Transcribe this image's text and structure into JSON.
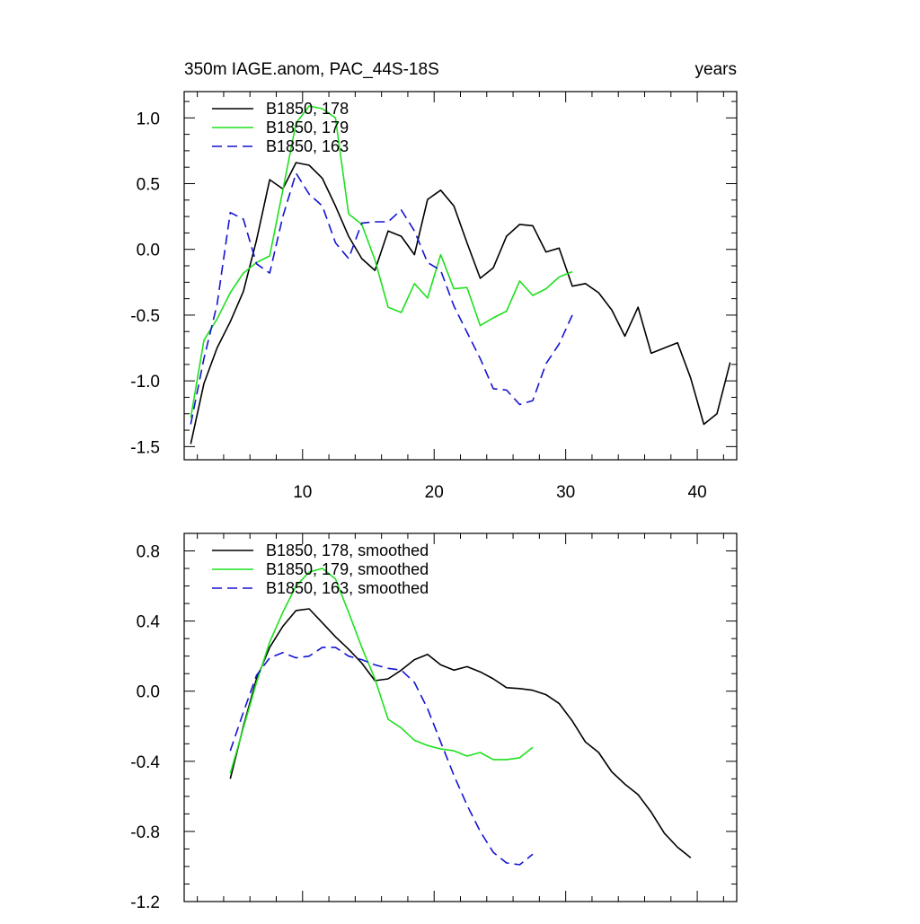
{
  "chart_data": [
    {
      "type": "line",
      "title": "350m IAGE.anom, PAC_44S-18S",
      "title_right": "years",
      "xlim": [
        1,
        43
      ],
      "ylim": [
        -1.6,
        1.2
      ],
      "xticks": [
        10,
        20,
        30,
        40
      ],
      "xtick_labels": [
        "10",
        "20",
        "30",
        "40"
      ],
      "yticks": [
        -1.5,
        -1.0,
        -0.5,
        0.0,
        0.5,
        1.0
      ],
      "ytick_labels": [
        "-1.5",
        "-1.0",
        "-0.5",
        "0.0",
        "0.5",
        "1.0"
      ],
      "grid": false,
      "legend_position": "top-left",
      "series": [
        {
          "name": "B1850, 178",
          "color": "#000000",
          "dash": "solid",
          "x": [
            1.5,
            2.5,
            3.5,
            4.5,
            5.5,
            6.5,
            7.5,
            8.5,
            9.5,
            10.5,
            11.5,
            12.5,
            13.5,
            14.5,
            15.5,
            16.5,
            17.5,
            18.5,
            19.5,
            20.5,
            21.5,
            22.5,
            23.5,
            24.5,
            25.5,
            26.5,
            27.5,
            28.5,
            29.5,
            30.5,
            31.5,
            32.5,
            33.5,
            34.5,
            35.5,
            36.5,
            37.5,
            38.5,
            39.5,
            40.5,
            41.5,
            42.5
          ],
          "y": [
            -1.48,
            -1.02,
            -0.75,
            -0.55,
            -0.32,
            0.07,
            0.53,
            0.46,
            0.66,
            0.64,
            0.54,
            0.33,
            0.1,
            -0.07,
            -0.16,
            0.14,
            0.1,
            -0.04,
            0.38,
            0.45,
            0.33,
            0.05,
            -0.22,
            -0.14,
            0.1,
            0.19,
            0.18,
            -0.02,
            0.01,
            -0.28,
            -0.26,
            -0.33,
            -0.46,
            -0.66,
            -0.44,
            -0.79,
            -0.75,
            -0.71,
            -0.98,
            -1.33,
            -1.25,
            -0.86
          ]
        },
        {
          "name": "B1850, 179",
          "color": "#1fe01f",
          "dash": "solid",
          "x": [
            1.5,
            2.5,
            3.5,
            4.5,
            5.5,
            6.5,
            7.5,
            8.5,
            9.5,
            10.5,
            11.5,
            12.5,
            13.5,
            14.5,
            15.5,
            16.5,
            17.5,
            18.5,
            19.5,
            20.5,
            21.5,
            22.5,
            23.5,
            24.5,
            25.5,
            26.5,
            27.5,
            28.5,
            29.5,
            30.5
          ],
          "y": [
            -1.28,
            -0.69,
            -0.53,
            -0.33,
            -0.18,
            -0.1,
            -0.05,
            0.45,
            0.96,
            1.09,
            1.07,
            1.0,
            0.27,
            0.19,
            -0.08,
            -0.44,
            -0.48,
            -0.26,
            -0.37,
            -0.04,
            -0.3,
            -0.29,
            -0.58,
            -0.52,
            -0.47,
            -0.24,
            -0.35,
            -0.3,
            -0.21,
            -0.17
          ]
        },
        {
          "name": "B1850, 163",
          "color": "#1414d2",
          "dash": "dashed",
          "x": [
            1.5,
            2.5,
            3.5,
            4.5,
            5.5,
            6.5,
            7.5,
            8.5,
            9.5,
            10.5,
            11.5,
            12.5,
            13.5,
            14.5,
            15.5,
            16.5,
            17.5,
            18.5,
            19.5,
            20.5,
            21.5,
            22.5,
            23.5,
            24.5,
            25.5,
            26.5,
            27.5,
            28.5,
            29.5,
            30.5
          ],
          "y": [
            -1.33,
            -0.83,
            -0.42,
            0.28,
            0.23,
            -0.11,
            -0.18,
            0.25,
            0.58,
            0.42,
            0.33,
            0.05,
            -0.07,
            0.2,
            0.21,
            0.21,
            0.3,
            0.14,
            -0.1,
            -0.16,
            -0.43,
            -0.63,
            -0.83,
            -1.06,
            -1.07,
            -1.18,
            -1.15,
            -0.87,
            -0.72,
            -0.5
          ]
        }
      ]
    },
    {
      "type": "line",
      "title": "",
      "xlim": [
        1,
        43
      ],
      "ylim": [
        -1.2,
        0.9
      ],
      "xticks": [
        10,
        20,
        30,
        40
      ],
      "xtick_labels": [],
      "yticks": [
        -1.2,
        -0.8,
        -0.4,
        0.0,
        0.4,
        0.8
      ],
      "ytick_labels": [
        "-1.2",
        "-0.8",
        "-0.4",
        "0.0",
        "0.4",
        "0.8"
      ],
      "grid": false,
      "legend_position": "top-left",
      "series": [
        {
          "name": "B1850, 178, smoothed",
          "color": "#000000",
          "dash": "solid",
          "x": [
            4.5,
            5.5,
            6.5,
            7.5,
            8.5,
            9.5,
            10.5,
            11.5,
            12.5,
            13.5,
            14.5,
            15.5,
            16.5,
            17.5,
            18.5,
            19.5,
            20.5,
            21.5,
            22.5,
            23.5,
            24.5,
            25.5,
            26.5,
            27.5,
            28.5,
            29.5,
            30.5,
            31.5,
            32.5,
            33.5,
            34.5,
            35.5,
            36.5,
            37.5,
            38.5,
            39.5
          ],
          "y": [
            -0.5,
            -0.2,
            0.07,
            0.25,
            0.37,
            0.46,
            0.47,
            0.39,
            0.31,
            0.24,
            0.16,
            0.06,
            0.07,
            0.12,
            0.18,
            0.21,
            0.15,
            0.12,
            0.14,
            0.11,
            0.07,
            0.02,
            0.015,
            0.005,
            -0.02,
            -0.07,
            -0.17,
            -0.29,
            -0.35,
            -0.46,
            -0.53,
            -0.59,
            -0.69,
            -0.81,
            -0.89,
            -0.95
          ]
        },
        {
          "name": "B1850, 179, smoothed",
          "color": "#1fe01f",
          "dash": "solid",
          "x": [
            4.5,
            5.5,
            6.5,
            7.5,
            8.5,
            9.5,
            10.5,
            11.5,
            12.5,
            13.5,
            14.5,
            15.5,
            16.5,
            17.5,
            18.5,
            19.5,
            20.5,
            21.5,
            22.5,
            23.5,
            24.5,
            25.5,
            26.5,
            27.5
          ],
          "y": [
            -0.47,
            -0.21,
            0.05,
            0.28,
            0.45,
            0.6,
            0.68,
            0.7,
            0.64,
            0.45,
            0.25,
            0.07,
            -0.16,
            -0.21,
            -0.28,
            -0.31,
            -0.33,
            -0.34,
            -0.37,
            -0.35,
            -0.39,
            -0.39,
            -0.38,
            -0.32
          ]
        },
        {
          "name": "B1850, 163, smoothed",
          "color": "#1414d2",
          "dash": "dashed",
          "x": [
            4.5,
            5.5,
            6.5,
            7.5,
            8.5,
            9.5,
            10.5,
            11.5,
            12.5,
            13.5,
            14.5,
            15.5,
            16.5,
            17.5,
            18.5,
            19.5,
            20.5,
            21.5,
            22.5,
            23.5,
            24.5,
            25.5,
            26.5,
            27.5
          ],
          "y": [
            -0.34,
            -0.12,
            0.09,
            0.19,
            0.22,
            0.19,
            0.2,
            0.25,
            0.25,
            0.2,
            0.18,
            0.15,
            0.13,
            0.12,
            0.05,
            -0.1,
            -0.29,
            -0.48,
            -0.65,
            -0.8,
            -0.92,
            -0.98,
            -0.99,
            -0.93
          ]
        }
      ]
    }
  ]
}
